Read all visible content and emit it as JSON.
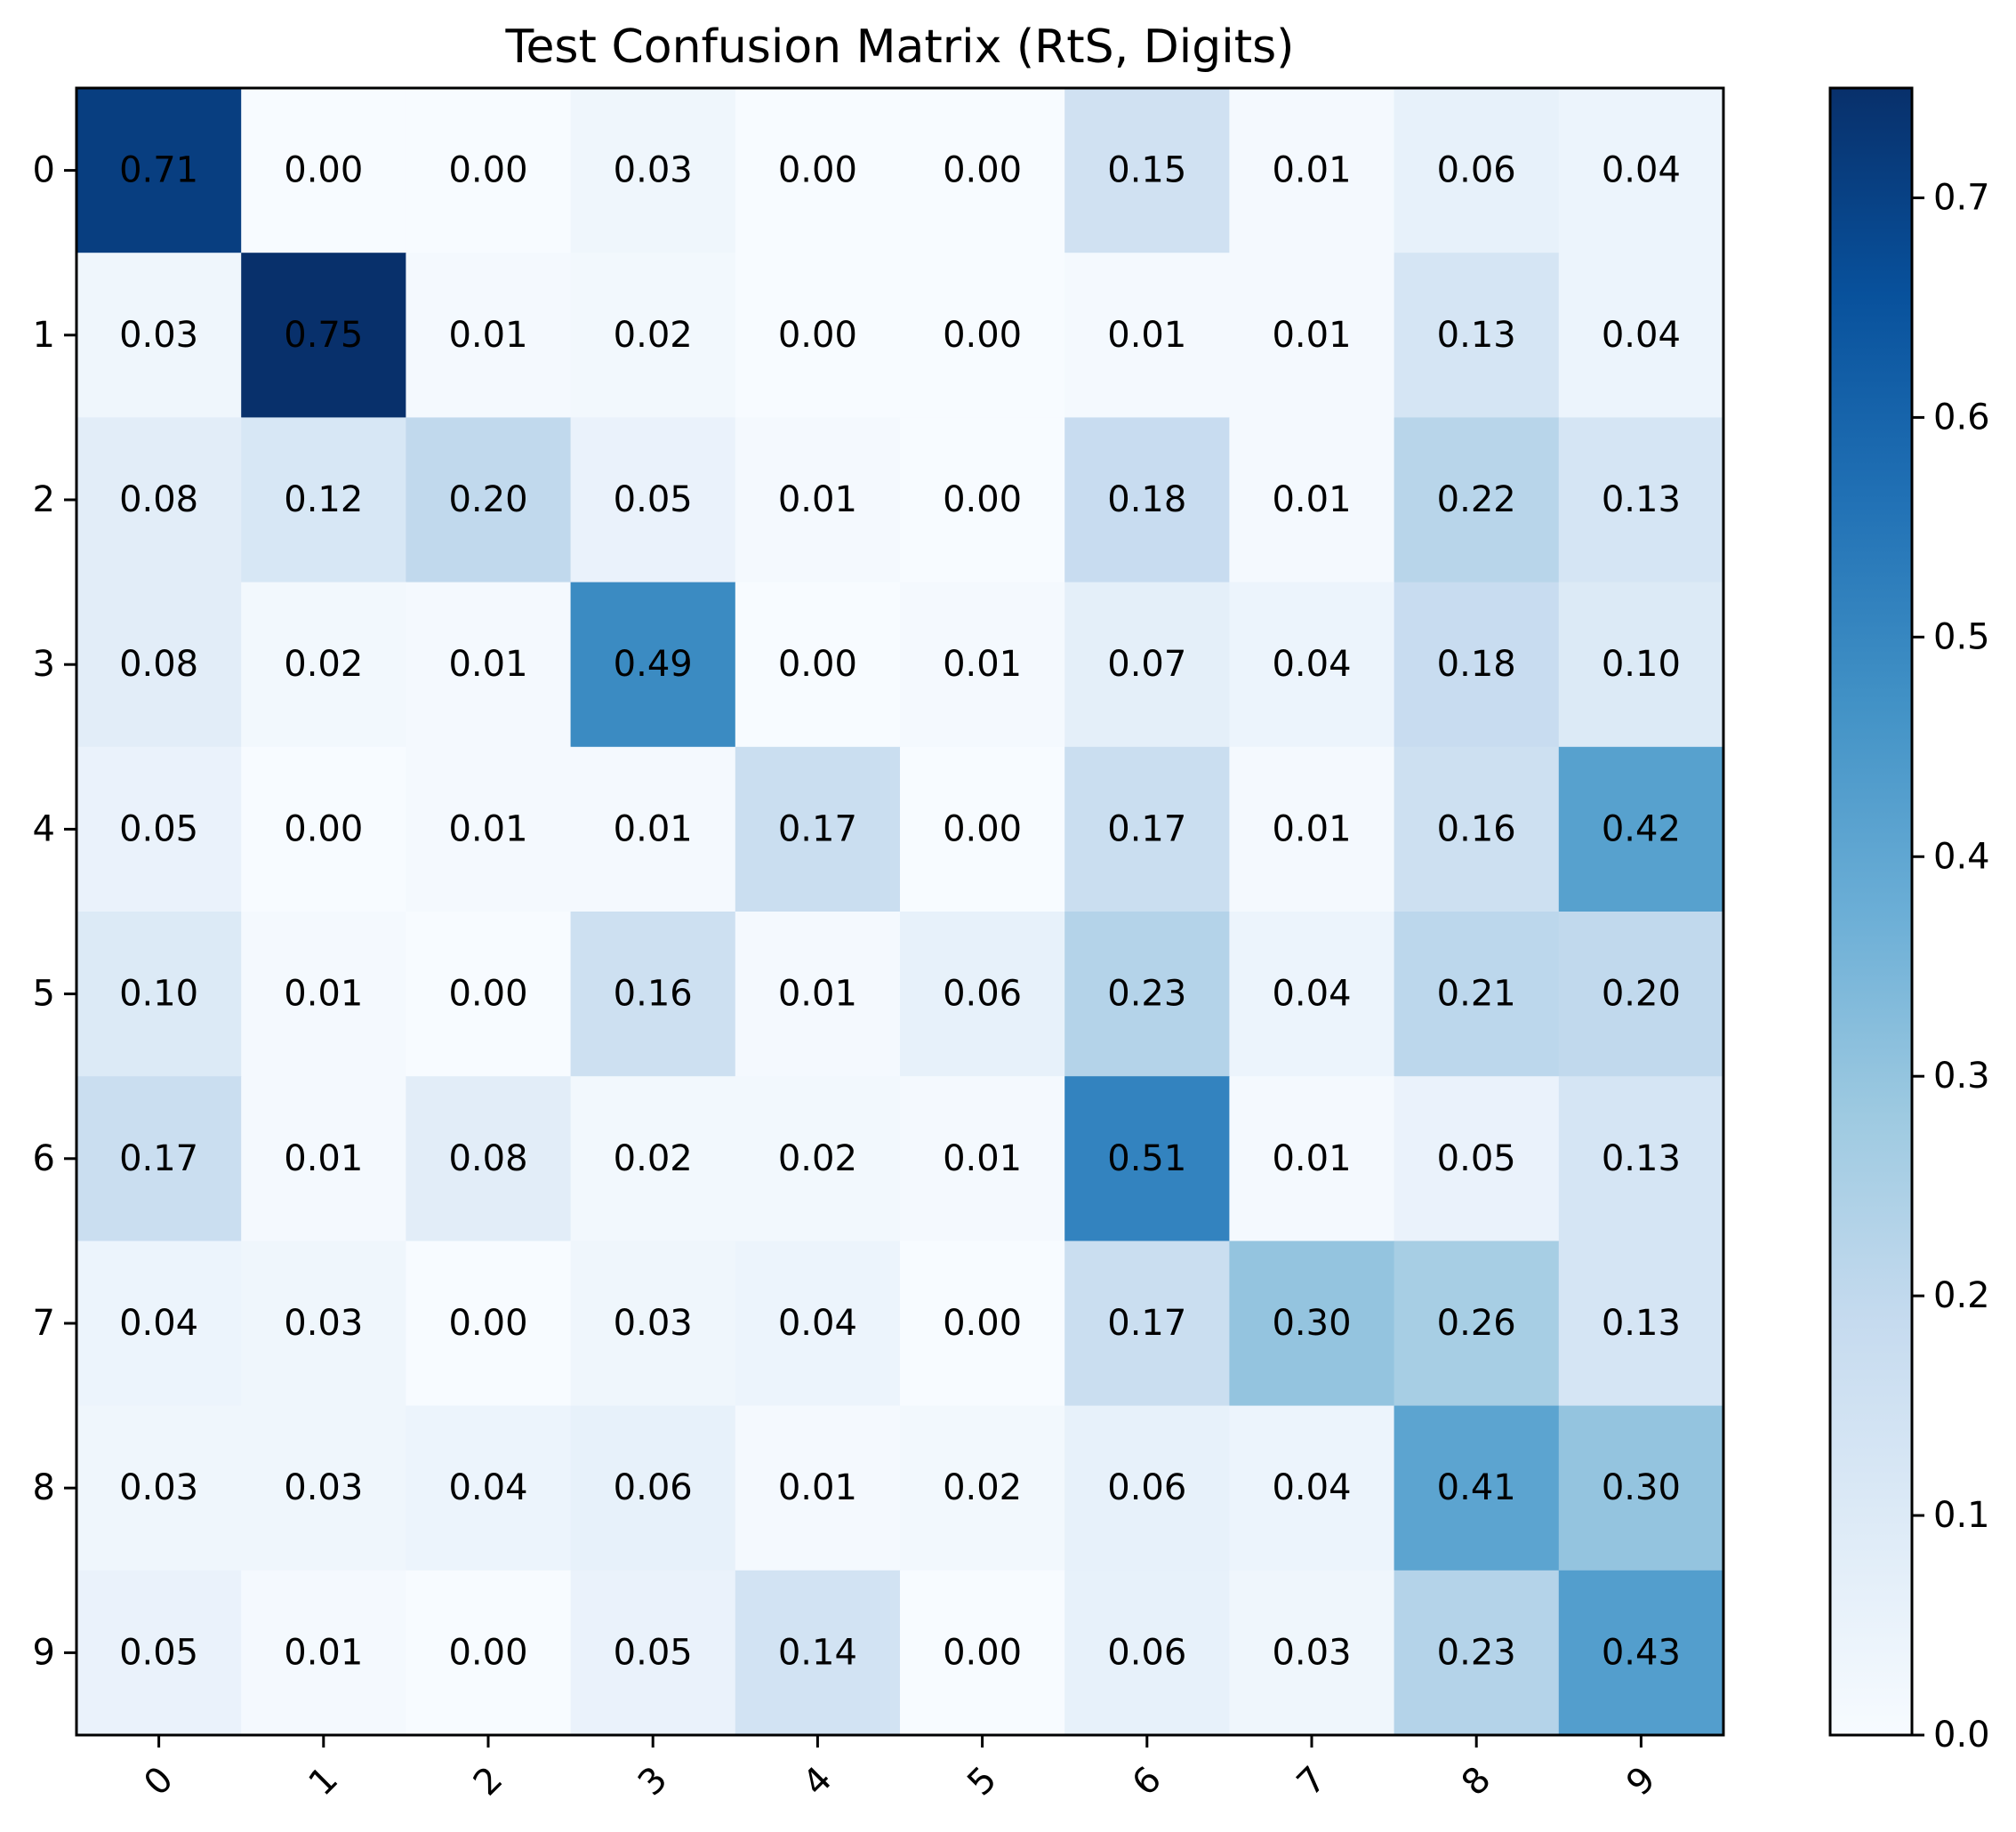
{
  "chart_data": {
    "type": "heatmap",
    "title": "Test Confusion Matrix (RtS, Digits)",
    "xlabel": "",
    "ylabel": "",
    "x_categories": [
      "0",
      "1",
      "2",
      "3",
      "4",
      "5",
      "6",
      "7",
      "8",
      "9"
    ],
    "y_categories": [
      "0",
      "1",
      "2",
      "3",
      "4",
      "5",
      "6",
      "7",
      "8",
      "9"
    ],
    "values": [
      [
        0.71,
        0.0,
        0.0,
        0.03,
        0.0,
        0.0,
        0.15,
        0.01,
        0.06,
        0.04
      ],
      [
        0.03,
        0.75,
        0.01,
        0.02,
        0.0,
        0.0,
        0.01,
        0.01,
        0.13,
        0.04
      ],
      [
        0.08,
        0.12,
        0.2,
        0.05,
        0.01,
        0.0,
        0.18,
        0.01,
        0.22,
        0.13
      ],
      [
        0.08,
        0.02,
        0.01,
        0.49,
        0.0,
        0.01,
        0.07,
        0.04,
        0.18,
        0.1
      ],
      [
        0.05,
        0.0,
        0.01,
        0.01,
        0.17,
        0.0,
        0.17,
        0.01,
        0.16,
        0.42
      ],
      [
        0.1,
        0.01,
        0.0,
        0.16,
        0.01,
        0.06,
        0.23,
        0.04,
        0.21,
        0.2
      ],
      [
        0.17,
        0.01,
        0.08,
        0.02,
        0.02,
        0.01,
        0.51,
        0.01,
        0.05,
        0.13
      ],
      [
        0.04,
        0.03,
        0.0,
        0.03,
        0.04,
        0.0,
        0.17,
        0.3,
        0.26,
        0.13
      ],
      [
        0.03,
        0.03,
        0.04,
        0.06,
        0.01,
        0.02,
        0.06,
        0.04,
        0.41,
        0.3
      ],
      [
        0.05,
        0.01,
        0.0,
        0.05,
        0.14,
        0.0,
        0.06,
        0.03,
        0.23,
        0.43
      ]
    ],
    "value_format": "2 decimals",
    "colormap": "Blues",
    "colormap_stops": [
      "#f7fbff",
      "#deebf7",
      "#c6dbef",
      "#9ecae1",
      "#6baed6",
      "#4292c6",
      "#2171b5",
      "#08519c",
      "#08306b"
    ],
    "colorbar": {
      "range": [
        0,
        0.75
      ],
      "ticks": [
        0.0,
        0.1,
        0.2,
        0.3,
        0.4,
        0.5,
        0.6,
        0.7
      ],
      "tick_labels": [
        "0.0",
        "0.1",
        "0.2",
        "0.3",
        "0.4",
        "0.5",
        "0.6",
        "0.7"
      ]
    },
    "x_tick_rotation_deg": 45,
    "grid": false
  }
}
